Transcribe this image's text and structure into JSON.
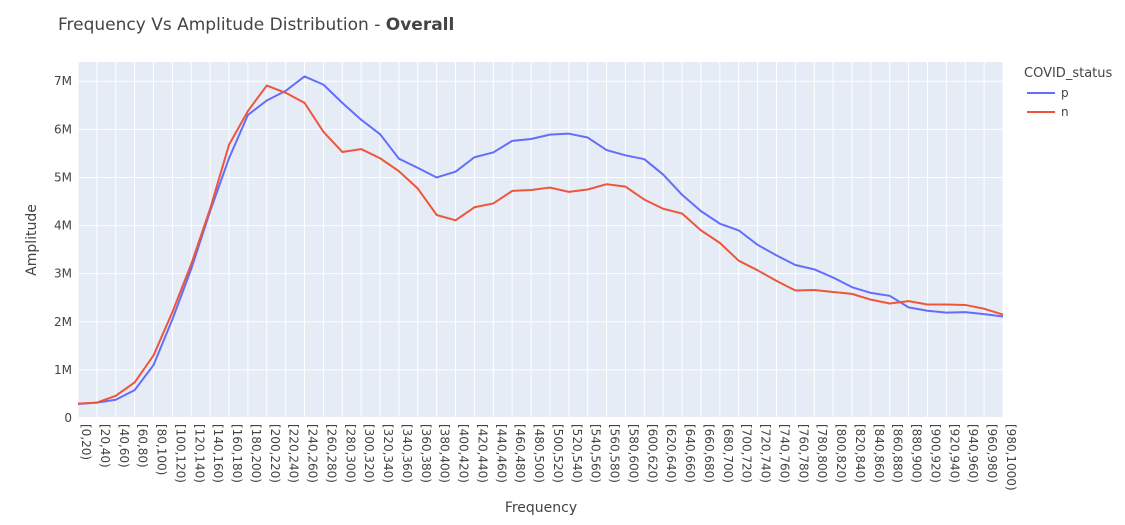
{
  "chart_data": {
    "type": "line",
    "title": "Frequency Vs Amplitude Distribution - ",
    "title_bold": "Overall",
    "xlabel": "Frequency",
    "ylabel": "Amplitude",
    "ylim": [
      0,
      7400000
    ],
    "yticks": [
      0,
      1000000,
      2000000,
      3000000,
      4000000,
      5000000,
      6000000,
      7000000
    ],
    "ytick_labels": [
      "0",
      "1M",
      "2M",
      "3M",
      "4M",
      "5M",
      "6M",
      "7M"
    ],
    "grid": true,
    "plot_background": "#e5ecf6",
    "legend": {
      "title": "COVID_status",
      "placement": "right"
    },
    "categories": [
      "[0,20)",
      "[20,40)",
      "[40,60)",
      "[60,80)",
      "[80,100)",
      "[100,120)",
      "[120,140)",
      "[140,160)",
      "[160,180)",
      "[180,200)",
      "[200,220)",
      "[220,240)",
      "[240,260)",
      "[260,280)",
      "[280,300)",
      "[300,320)",
      "[320,340)",
      "[340,360)",
      "[360,380)",
      "[380,400)",
      "[400,420)",
      "[420,440)",
      "[440,460)",
      "[460,480)",
      "[480,500)",
      "[500,520)",
      "[520,540)",
      "[540,560)",
      "[560,580)",
      "[580,600)",
      "[600,620)",
      "[620,640)",
      "[640,660)",
      "[660,680)",
      "[680,700)",
      "[700,720)",
      "[720,740)",
      "[740,760)",
      "[760,780)",
      "[780,800)",
      "[800,820)",
      "[820,840)",
      "[840,860)",
      "[860,880)",
      "[880,900)",
      "[900,920)",
      "[920,940)",
      "[940,960)",
      "[960,980)",
      "[980,1000)"
    ],
    "series": [
      {
        "name": "p",
        "color": "#636efa",
        "values": [
          290000,
          320000,
          380000,
          580000,
          1100000,
          2050000,
          3100000,
          4300000,
          5400000,
          6300000,
          6600000,
          6800000,
          7100000,
          6930000,
          6550000,
          6200000,
          5900000,
          5390000,
          5200000,
          5000000,
          5120000,
          5420000,
          5520000,
          5760000,
          5800000,
          5890000,
          5910000,
          5830000,
          5570000,
          5460000,
          5380000,
          5060000,
          4640000,
          4300000,
          4040000,
          3900000,
          3600000,
          3380000,
          3180000,
          3090000,
          2920000,
          2720000,
          2600000,
          2540000,
          2300000,
          2230000,
          2190000,
          2200000,
          2160000,
          2110000
        ]
      },
      {
        "name": "n",
        "color": "#ef553b",
        "values": [
          300000,
          320000,
          460000,
          740000,
          1300000,
          2200000,
          3200000,
          4350000,
          5680000,
          6380000,
          6910000,
          6760000,
          6550000,
          5950000,
          5530000,
          5590000,
          5400000,
          5130000,
          4770000,
          4220000,
          4110000,
          4380000,
          4460000,
          4720000,
          4740000,
          4790000,
          4700000,
          4750000,
          4860000,
          4810000,
          4540000,
          4350000,
          4250000,
          3900000,
          3640000,
          3270000,
          3070000,
          2850000,
          2650000,
          2660000,
          2620000,
          2580000,
          2460000,
          2380000,
          2430000,
          2360000,
          2360000,
          2350000,
          2270000,
          2150000
        ]
      }
    ]
  }
}
